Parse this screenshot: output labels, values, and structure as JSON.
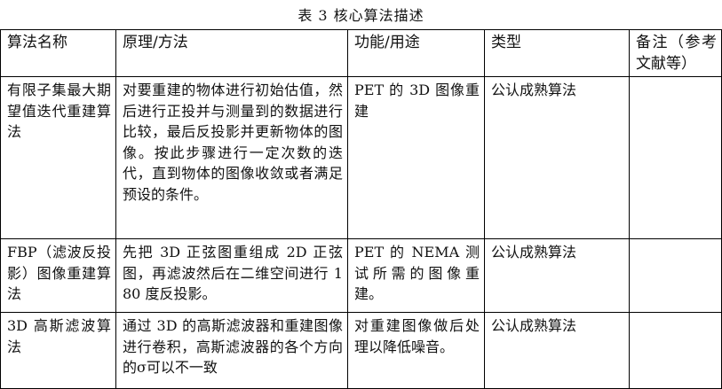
{
  "title": "表 3 核心算法描述",
  "headers": [
    "算法名称",
    "原理/方法",
    "功能/用途",
    "类型",
    "备注（参考文献等）"
  ],
  "rows": [
    {
      "name": "有限子集最大期望值迭代重建算法",
      "method": "对要重建的物体进行初始估值，然后进行正投并与测量到的数据进行比较，最后反投影并更新物体的图像。按此步骤进行一定次数的迭代，直到物体的图像收敛或者满足预设的条件。",
      "use": "PET 的 3D 图像重建",
      "type": "公认成熟算法",
      "note": ""
    },
    {
      "name": "FBP（滤波反投影）图像重建算法",
      "method": "先把 3D 正弦图重组成 2D 正弦图，再滤波然后在二维空间进行 180 度反投影。",
      "use": "PET 的 NEMA 测试所需的图像重建。",
      "type": "公认成熟算法",
      "note": ""
    },
    {
      "name": "3D 高斯滤波算法",
      "method": "通过 3D 的高斯滤波器和重建图像进行卷积，高斯滤波器的各个方向的σ可以不一致",
      "use": "对重建图像做后处理以降低噪音。",
      "type": "公认成熟算法",
      "note": ""
    }
  ]
}
